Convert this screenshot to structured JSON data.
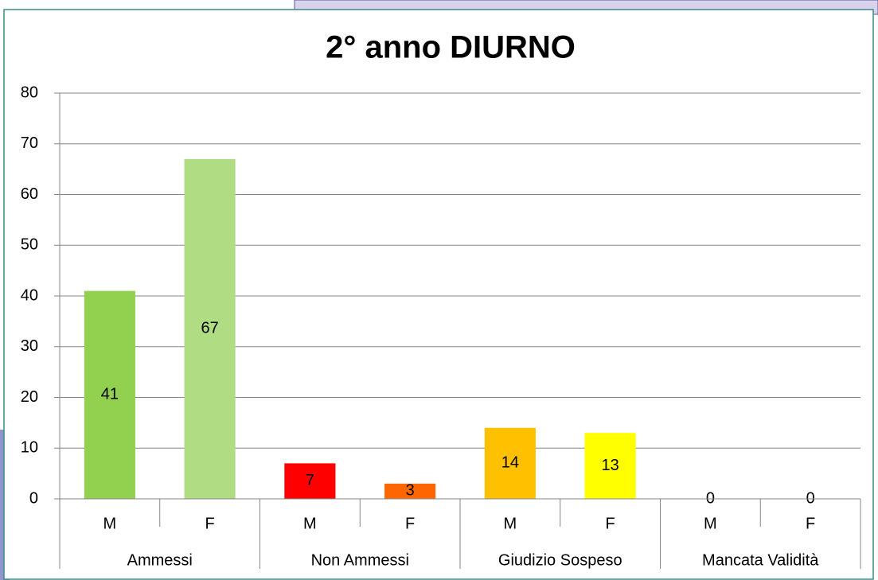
{
  "chart_data": {
    "type": "bar",
    "title": "2° anno DIURNO",
    "categories": [
      "M",
      "F",
      "M",
      "F",
      "M",
      "F",
      "M",
      "F"
    ],
    "groups": [
      "Ammessi",
      "Non Ammessi",
      "Giudizio Sospeso",
      "Mancata Validità"
    ],
    "values": [
      41,
      67,
      7,
      3,
      14,
      13,
      0,
      0
    ],
    "colors": [
      "#92d050",
      "#b0dc84",
      "#ff0000",
      "#ff6600",
      "#ffc000",
      "#ffff00",
      "#92d050",
      "#b0dc84"
    ],
    "ylim": [
      0,
      80
    ],
    "yticks": [
      0,
      10,
      20,
      30,
      40,
      50,
      60,
      70,
      80
    ],
    "grid": true
  }
}
